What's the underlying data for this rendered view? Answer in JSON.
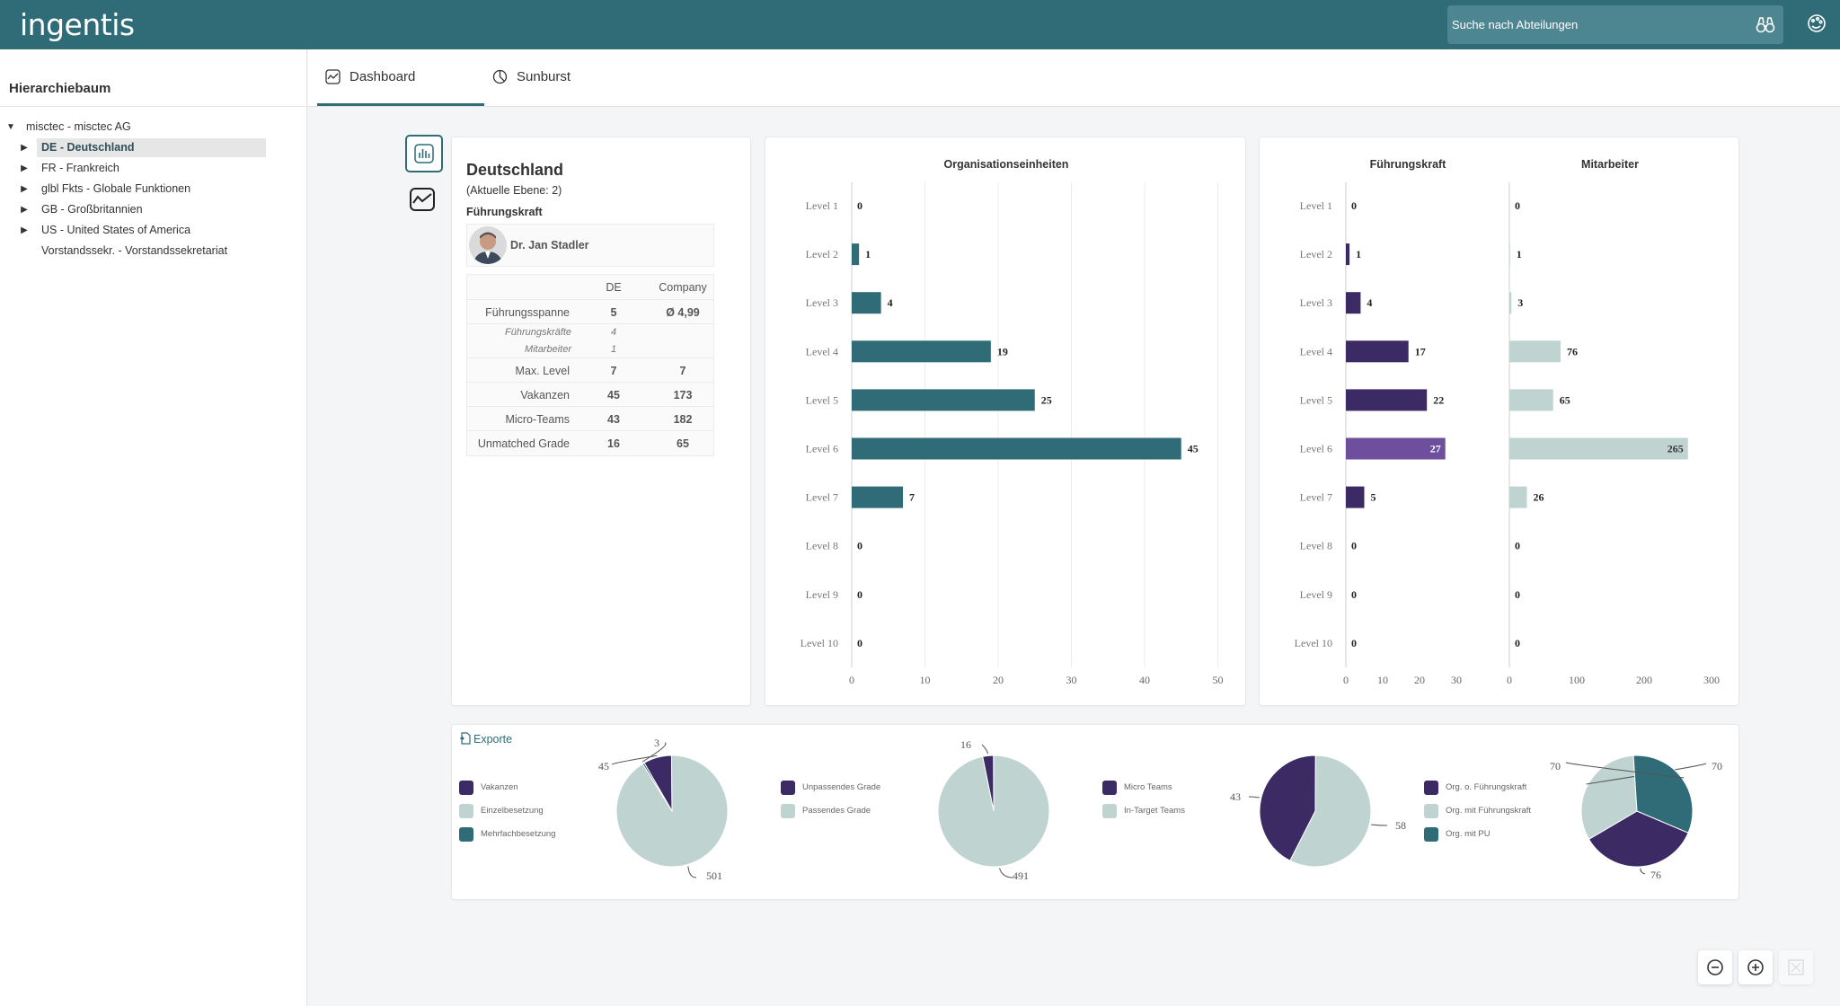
{
  "app": {
    "logo": "ingentis"
  },
  "search": {
    "placeholder": "Suche nach Abteilungen"
  },
  "sidebar": {
    "title": "Hierarchiebaum",
    "root": "misctec - misctec AG",
    "items": [
      {
        "label": "DE - Deutschland",
        "selected": true
      },
      {
        "label": "FR - Frankreich"
      },
      {
        "label": "glbl Fkts - Globale Funktionen"
      },
      {
        "label": "GB - Großbritannien"
      },
      {
        "label": "US - United States of America"
      },
      {
        "label": "Vorstandssekr. - Vorstandssekretariat"
      }
    ]
  },
  "tabs": [
    {
      "label": "Dashboard",
      "active": true
    },
    {
      "label": "Sunburst"
    }
  ],
  "info": {
    "title": "Deutschland",
    "level": "(Aktuelle Ebene: 2)",
    "leader_heading": "Führungskraft",
    "leader_name": "Dr. Jan Stadler",
    "columns": [
      "DE",
      "Company"
    ],
    "rows": [
      {
        "label": "Führungsspanne",
        "de": "5",
        "company": "Ø 4,99"
      },
      {
        "label": "Führungskräfte",
        "de": "4",
        "company": "",
        "sub": true
      },
      {
        "label": "Mitarbeiter",
        "de": "1",
        "company": "",
        "sub": true
      },
      {
        "label": "Max. Level",
        "de": "7",
        "company": "7"
      },
      {
        "label": "Vakanzen",
        "de": "45",
        "company": "173"
      },
      {
        "label": "Micro-Teams",
        "de": "43",
        "company": "182"
      },
      {
        "label": "Unmatched Grade",
        "de": "16",
        "company": "65"
      }
    ]
  },
  "exports": {
    "label": "Exporte"
  },
  "colors": {
    "primary": "#2f6c78",
    "dark_purple": "#3b2a63",
    "purple_highlight": "#6d4f9d",
    "light": "#bfd3d1"
  },
  "chart_data": [
    {
      "type": "bar",
      "orientation": "horizontal",
      "title": "Organisationseinheiten",
      "categories": [
        "Level 1",
        "Level 2",
        "Level 3",
        "Level 4",
        "Level 5",
        "Level 6",
        "Level 7",
        "Level 8",
        "Level 9",
        "Level 10"
      ],
      "values": [
        0,
        1,
        4,
        19,
        25,
        45,
        7,
        0,
        0,
        0
      ],
      "xlim": [
        0,
        50
      ],
      "xticks": [
        0,
        10,
        20,
        30,
        40,
        50
      ],
      "grid": true,
      "color": "#2f6c78"
    },
    {
      "type": "bar",
      "orientation": "horizontal",
      "title": "Führungskraft",
      "categories": [
        "Level 1",
        "Level 2",
        "Level 3",
        "Level 4",
        "Level 5",
        "Level 6",
        "Level 7",
        "Level 8",
        "Level 9",
        "Level 10"
      ],
      "values": [
        0,
        1,
        4,
        17,
        22,
        27,
        5,
        0,
        0,
        0
      ],
      "xlim": [
        0,
        30
      ],
      "xticks": [
        0,
        10,
        20,
        30
      ],
      "highlight_index": 5,
      "color": "#3b2a63"
    },
    {
      "type": "bar",
      "orientation": "horizontal",
      "title": "Mitarbeiter",
      "categories": [
        "Level 1",
        "Level 2",
        "Level 3",
        "Level 4",
        "Level 5",
        "Level 6",
        "Level 7",
        "Level 8",
        "Level 9",
        "Level 10"
      ],
      "values": [
        0,
        1,
        3,
        76,
        65,
        265,
        26,
        0,
        0,
        0
      ],
      "xlim": [
        0,
        300
      ],
      "xticks": [
        0,
        100,
        200,
        300
      ],
      "color": "#bfd3d1"
    },
    {
      "type": "pie",
      "labels": [
        "Vakanzen",
        "Einzelbesetzung",
        "Mehrfachbesetzung"
      ],
      "values": [
        45,
        501,
        3
      ],
      "colors": [
        "#3b2a63",
        "#bfd3d1",
        "#2f6c78"
      ]
    },
    {
      "type": "pie",
      "labels": [
        "Unpassendes Grade",
        "Passendes Grade"
      ],
      "values": [
        16,
        491
      ],
      "colors": [
        "#3b2a63",
        "#bfd3d1"
      ]
    },
    {
      "type": "pie",
      "labels": [
        "Micro Teams",
        "In-Target Teams"
      ],
      "values": [
        43,
        58
      ],
      "colors": [
        "#3b2a63",
        "#bfd3d1"
      ]
    },
    {
      "type": "pie",
      "labels": [
        "Org. o. Führungskraft",
        "Org. mit Führungskraft",
        "Org. mit PU"
      ],
      "values": [
        76,
        70,
        70
      ],
      "colors": [
        "#3b2a63",
        "#bfd3d1",
        "#2f6c78"
      ]
    }
  ]
}
